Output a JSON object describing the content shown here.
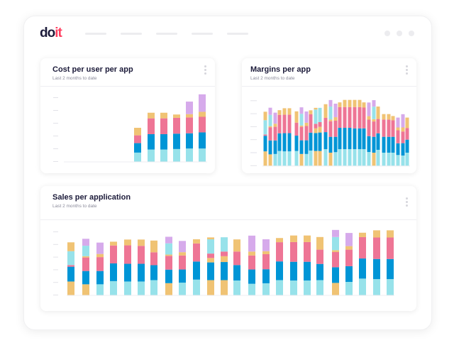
{
  "brand": {
    "logo_do": "do",
    "logo_it": "it"
  },
  "colors": {
    "cyan": "#97e2ea",
    "blue": "#0095d6",
    "pink": "#ee7595",
    "orange": "#f0c374",
    "purple": "#d6aaeb"
  },
  "cards": {
    "cost": {
      "title": "Cost per user per app",
      "subtitle": "Last 2 months to date"
    },
    "margins": {
      "title": "Margins per app",
      "subtitle": "Last 2 months to date"
    },
    "sales": {
      "title": "Sales per application",
      "subtitle": "Last 2 months to date"
    }
  },
  "chart_data": [
    {
      "type": "bar",
      "stacked": true,
      "title": "Cost per user per app",
      "ylim": [
        0,
        5
      ],
      "grid": false,
      "bars": [
        [
          [
            "cyan",
            0.7
          ],
          [
            "blue",
            0.74
          ],
          [
            "pink",
            0.61
          ],
          [
            "orange",
            0.59
          ]
        ],
        [
          [
            "cyan",
            0.94
          ],
          [
            "blue",
            1.2
          ],
          [
            "pink",
            1.24
          ],
          [
            "orange",
            0.44
          ]
        ],
        [
          [
            "cyan",
            0.94
          ],
          [
            "blue",
            1.2
          ],
          [
            "pink",
            1.24
          ],
          [
            "orange",
            0.44
          ]
        ],
        [
          [
            "cyan",
            0.98
          ],
          [
            "blue",
            1.2
          ],
          [
            "pink",
            1.24
          ],
          [
            "orange",
            0.26
          ]
        ],
        [
          [
            "cyan",
            1.02
          ],
          [
            "blue",
            1.19
          ],
          [
            "pink",
            1.24
          ],
          [
            "orange",
            0.26
          ],
          [
            "purple",
            0.98
          ]
        ],
        [
          [
            "cyan",
            1.02
          ],
          [
            "blue",
            1.26
          ],
          [
            "pink",
            1.22
          ],
          [
            "orange",
            0.39
          ],
          [
            "purple",
            1.37
          ]
        ]
      ]
    },
    {
      "type": "bar",
      "stacked": true,
      "title": "Margins per app",
      "ylim": [
        0,
        5
      ],
      "grid": false,
      "bars": [
        [
          [
            "orange",
            1.1
          ],
          [
            "blue",
            1.2
          ],
          [
            "pink",
            0.1
          ],
          [
            "cyan",
            1.1
          ],
          [
            "orange",
            0.65
          ]
        ],
        [
          [
            "orange",
            0.87
          ],
          [
            "blue",
            1.07
          ],
          [
            "pink",
            1.0
          ],
          [
            "orange",
            0.1
          ],
          [
            "cyan",
            0.87
          ],
          [
            "purple",
            0.55
          ]
        ],
        [
          [
            "cyan",
            0.9
          ],
          [
            "blue",
            1.04
          ],
          [
            "pink",
            1.05
          ],
          [
            "orange",
            0.24
          ],
          [
            "purple",
            0.85
          ]
        ],
        [
          [
            "cyan",
            1.13
          ],
          [
            "blue",
            1.36
          ],
          [
            "pink",
            1.42
          ],
          [
            "orange",
            0.36
          ]
        ],
        [
          [
            "cyan",
            1.1
          ],
          [
            "blue",
            1.4
          ],
          [
            "pink",
            1.42
          ],
          [
            "orange",
            0.5
          ]
        ],
        [
          [
            "cyan",
            1.1
          ],
          [
            "blue",
            1.4
          ],
          [
            "pink",
            1.42
          ],
          [
            "orange",
            0.5
          ]
        ],
        [
          [
            "cyan",
            1.13
          ],
          [
            "blue",
            1.18
          ],
          [
            "pink",
            1.0
          ],
          [
            "orange",
            0.87
          ]
        ],
        [
          [
            "orange",
            0.9
          ],
          [
            "blue",
            1.05
          ],
          [
            "pink",
            1.04
          ],
          [
            "orange",
            0.1
          ],
          [
            "cyan",
            0.9
          ],
          [
            "purple",
            0.5
          ]
        ],
        [
          [
            "cyan",
            0.9
          ],
          [
            "blue",
            1.05
          ],
          [
            "pink",
            1.1
          ],
          [
            "orange",
            0.25
          ],
          [
            "purple",
            0.87
          ]
        ],
        [
          [
            "cyan",
            1.16
          ],
          [
            "blue",
            1.38
          ],
          [
            "pink",
            1.42
          ],
          [
            "orange",
            0.3
          ]
        ],
        [
          [
            "orange",
            1.13
          ],
          [
            "blue",
            1.38
          ],
          [
            "orange",
            0.36
          ],
          [
            "pink",
            0.35
          ],
          [
            "cyan",
            1.1
          ],
          [
            "orange",
            0.13
          ]
        ],
        [
          [
            "orange",
            1.13
          ],
          [
            "blue",
            1.42
          ],
          [
            "orange",
            0.44
          ],
          [
            "pink",
            0.36
          ],
          [
            "cyan",
            1.1
          ]
        ],
        [
          [
            "cyan",
            1.27
          ],
          [
            "blue",
            1.31
          ],
          [
            "pink",
            1.1
          ],
          [
            "orange",
            1.05
          ]
        ],
        [
          [
            "orange",
            1.0
          ],
          [
            "blue",
            1.22
          ],
          [
            "pink",
            1.2
          ],
          [
            "orange",
            0.13
          ],
          [
            "cyan",
            1.0
          ],
          [
            "purple",
            0.5
          ]
        ],
        [
          [
            "cyan",
            1.04
          ],
          [
            "blue",
            1.18
          ],
          [
            "pink",
            1.24
          ],
          [
            "orange",
            0.27
          ],
          [
            "purple",
            1.04
          ]
        ],
        [
          [
            "cyan",
            1.27
          ],
          [
            "blue",
            1.64
          ],
          [
            "pink",
            1.6
          ],
          [
            "orange",
            0.36
          ]
        ],
        [
          [
            "cyan",
            1.27
          ],
          [
            "blue",
            1.64
          ],
          [
            "pink",
            1.6
          ],
          [
            "orange",
            0.55
          ]
        ],
        [
          [
            "cyan",
            1.27
          ],
          [
            "blue",
            1.64
          ],
          [
            "pink",
            1.6
          ],
          [
            "orange",
            0.55
          ]
        ],
        [
          [
            "cyan",
            1.27
          ],
          [
            "blue",
            1.6
          ],
          [
            "pink",
            1.64
          ],
          [
            "orange",
            0.55
          ]
        ],
        [
          [
            "cyan",
            1.27
          ],
          [
            "blue",
            1.6
          ],
          [
            "pink",
            1.64
          ],
          [
            "orange",
            0.55
          ]
        ],
        [
          [
            "cyan",
            1.27
          ],
          [
            "blue",
            1.6
          ],
          [
            "pink",
            1.6
          ],
          [
            "orange",
            0.4
          ]
        ],
        [
          [
            "cyan",
            1.05
          ],
          [
            "blue",
            1.22
          ],
          [
            "pink",
            1.27
          ],
          [
            "orange",
            0.27
          ],
          [
            "purple",
            1.05
          ]
        ],
        [
          [
            "orange",
            1.0
          ],
          [
            "blue",
            1.22
          ],
          [
            "pink",
            1.18
          ],
          [
            "orange",
            0.18
          ],
          [
            "cyan",
            0.96
          ],
          [
            "purple",
            0.5
          ]
        ],
        [
          [
            "cyan",
            1.22
          ],
          [
            "blue",
            1.27
          ],
          [
            "pink",
            1.1
          ],
          [
            "orange",
            0.96
          ]
        ],
        [
          [
            "cyan",
            1.0
          ],
          [
            "blue",
            1.22
          ],
          [
            "pink",
            1.33
          ],
          [
            "orange",
            0.42
          ]
        ],
        [
          [
            "cyan",
            1.0
          ],
          [
            "blue",
            1.22
          ],
          [
            "pink",
            1.33
          ],
          [
            "orange",
            0.42
          ]
        ],
        [
          [
            "cyan",
            1.0
          ],
          [
            "blue",
            1.22
          ],
          [
            "pink",
            1.27
          ],
          [
            "orange",
            0.33
          ]
        ],
        [
          [
            "cyan",
            0.82
          ],
          [
            "blue",
            0.9
          ],
          [
            "pink",
            1.0
          ],
          [
            "orange",
            0.22
          ],
          [
            "purple",
            0.76
          ]
        ],
        [
          [
            "cyan",
            0.78
          ],
          [
            "blue",
            0.95
          ],
          [
            "pink",
            0.9
          ],
          [
            "orange",
            0.31
          ],
          [
            "purple",
            1.02
          ]
        ],
        [
          [
            "cyan",
            1.0
          ],
          [
            "blue",
            1.0
          ],
          [
            "pink",
            0.9
          ],
          [
            "orange",
            0.8
          ]
        ]
      ]
    },
    {
      "type": "bar",
      "stacked": true,
      "title": "Sales per application",
      "ylim": [
        0,
        5
      ],
      "grid": false,
      "bars": [
        [
          [
            "orange",
            1.07
          ],
          [
            "blue",
            1.17
          ],
          [
            "pink",
            0.13
          ],
          [
            "cyan",
            1.1
          ],
          [
            "orange",
            0.7
          ]
        ],
        [
          [
            "orange",
            0.85
          ],
          [
            "blue",
            1.05
          ],
          [
            "pink",
            1.07
          ],
          [
            "orange",
            0.1
          ],
          [
            "cyan",
            0.83
          ],
          [
            "purple",
            0.55
          ]
        ],
        [
          [
            "cyan",
            0.85
          ],
          [
            "blue",
            1.05
          ],
          [
            "pink",
            1.1
          ],
          [
            "orange",
            0.25
          ],
          [
            "purple",
            0.9
          ]
        ],
        [
          [
            "cyan",
            1.1
          ],
          [
            "blue",
            1.4
          ],
          [
            "pink",
            1.42
          ],
          [
            "orange",
            0.3
          ]
        ],
        [
          [
            "cyan",
            1.07
          ],
          [
            "blue",
            1.4
          ],
          [
            "pink",
            1.46
          ],
          [
            "orange",
            0.46
          ]
        ],
        [
          [
            "cyan",
            1.07
          ],
          [
            "blue",
            1.4
          ],
          [
            "pink",
            1.42
          ],
          [
            "orange",
            0.5
          ]
        ],
        [
          [
            "cyan",
            1.18
          ],
          [
            "blue",
            1.18
          ],
          [
            "pink",
            1.02
          ],
          [
            "orange",
            0.93
          ]
        ],
        [
          [
            "orange",
            0.94
          ],
          [
            "blue",
            1.07
          ],
          [
            "pink",
            1.09
          ],
          [
            "orange",
            0.1
          ],
          [
            "cyan",
            0.89
          ],
          [
            "purple",
            0.52
          ]
        ],
        [
          [
            "cyan",
            0.98
          ],
          [
            "blue",
            1.04
          ],
          [
            "pink",
            1.11
          ],
          [
            "orange",
            0.26
          ],
          [
            "purple",
            0.89
          ]
        ],
        [
          [
            "cyan",
            1.22
          ],
          [
            "blue",
            1.43
          ],
          [
            "pink",
            1.43
          ],
          [
            "orange",
            0.33
          ]
        ],
        [
          [
            "orange",
            1.18
          ],
          [
            "blue",
            1.4
          ],
          [
            "orange",
            0.35
          ],
          [
            "pink",
            0.35
          ],
          [
            "cyan",
            1.13
          ],
          [
            "orange",
            0.15
          ]
        ],
        [
          [
            "orange",
            1.18
          ],
          [
            "blue",
            1.43
          ],
          [
            "orange",
            0.46
          ],
          [
            "pink",
            0.37
          ],
          [
            "cyan",
            1.13
          ]
        ],
        [
          [
            "cyan",
            1.15
          ],
          [
            "blue",
            1.22
          ],
          [
            "pink",
            1.07
          ],
          [
            "orange",
            0.96
          ]
        ],
        [
          [
            "cyan",
            0.89
          ],
          [
            "blue",
            1.13
          ],
          [
            "pink",
            1.11
          ],
          [
            "orange",
            0.31
          ],
          [
            "purple",
            1.26
          ]
        ],
        [
          [
            "cyan",
            0.93
          ],
          [
            "blue",
            1.11
          ],
          [
            "pink",
            1.19
          ],
          [
            "orange",
            0.24
          ],
          [
            "purple",
            0.94
          ]
        ],
        [
          [
            "cyan",
            1.18
          ],
          [
            "blue",
            1.48
          ],
          [
            "pink",
            1.52
          ],
          [
            "orange",
            0.33
          ]
        ],
        [
          [
            "cyan",
            1.15
          ],
          [
            "blue",
            1.48
          ],
          [
            "pink",
            1.56
          ],
          [
            "orange",
            0.52
          ]
        ],
        [
          [
            "cyan",
            1.15
          ],
          [
            "blue",
            1.48
          ],
          [
            "pink",
            1.56
          ],
          [
            "orange",
            0.52
          ]
        ],
        [
          [
            "cyan",
            1.18
          ],
          [
            "blue",
            1.28
          ],
          [
            "pink",
            1.13
          ],
          [
            "orange",
            1.0
          ]
        ],
        [
          [
            "orange",
            0.96
          ],
          [
            "blue",
            1.24
          ],
          [
            "pink",
            1.2
          ],
          [
            "orange",
            0.15
          ],
          [
            "cyan",
            1.04
          ],
          [
            "purple",
            0.56
          ]
        ],
        [
          [
            "cyan",
            1.04
          ],
          [
            "blue",
            1.24
          ],
          [
            "pink",
            1.31
          ],
          [
            "orange",
            0.28
          ],
          [
            "purple",
            1.04
          ]
        ],
        [
          [
            "cyan",
            1.3
          ],
          [
            "blue",
            1.59
          ],
          [
            "pink",
            1.69
          ],
          [
            "orange",
            0.35
          ]
        ],
        [
          [
            "cyan",
            1.26
          ],
          [
            "blue",
            1.59
          ],
          [
            "pink",
            1.7
          ],
          [
            "orange",
            0.57
          ]
        ],
        [
          [
            "cyan",
            1.26
          ],
          [
            "blue",
            1.59
          ],
          [
            "pink",
            1.7
          ],
          [
            "orange",
            0.57
          ]
        ]
      ]
    }
  ]
}
